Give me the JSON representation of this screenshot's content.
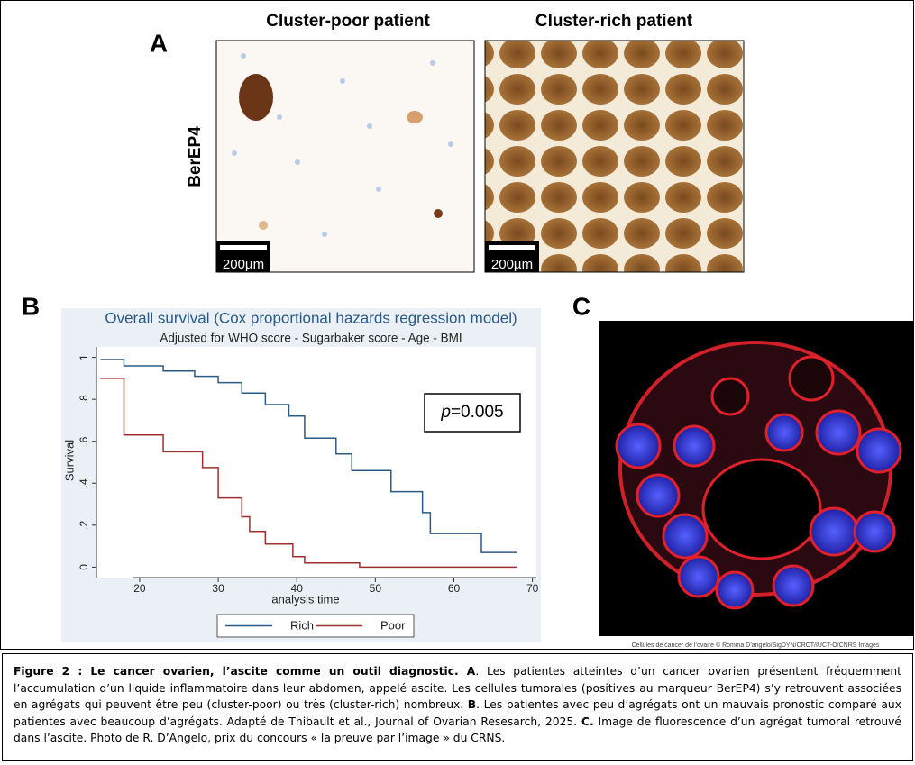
{
  "panel_a": {
    "label": "A",
    "titles": [
      "Cluster-poor patient",
      "Cluster-rich patient"
    ],
    "row_label": "BerEP4",
    "scale_bars": [
      "200µm",
      "200µm"
    ]
  },
  "panel_b": {
    "label": "B"
  },
  "panel_c": {
    "label": "C",
    "credit": "Cellules de cancer de l’ovaire © Romina D’angelo/SigDYN/CRCT/IUCT-O/CNRS Images"
  },
  "chart_data": {
    "type": "step",
    "title": "Overall survival (Cox proportional hazards regression model)",
    "subtitle": "Adjusted for WHO score - Sugarbaker score - Age - BMI",
    "x_label": "analysis time",
    "y_label": "Survival",
    "annotation": {
      "symbol": "p",
      "text": "=0.005"
    },
    "xlim": [
      14.5,
      70.5
    ],
    "xticks": [
      20,
      30,
      40,
      50,
      60,
      70
    ],
    "ylim": [
      -0.05,
      1.05
    ],
    "yticks": [
      0,
      {
        "value": 0.2,
        "label": ".2"
      },
      {
        "value": 0.4,
        "label": ".4"
      },
      {
        "value": 0.6,
        "label": ".6"
      },
      {
        "value": 0.8,
        "label": ".8"
      },
      1
    ],
    "legend": "bottom",
    "series": [
      {
        "name": "Rich",
        "color": "#2e5a86",
        "x": [
          15,
          18,
          23,
          27,
          30,
          33,
          36,
          39,
          41,
          45,
          47,
          52,
          56,
          57,
          63.5,
          68
        ],
        "values": [
          0.99,
          0.96,
          0.935,
          0.91,
          0.88,
          0.83,
          0.775,
          0.72,
          0.615,
          0.54,
          0.46,
          0.36,
          0.26,
          0.16,
          0.07,
          0.07
        ]
      },
      {
        "name": "Poor",
        "color": "#9e2f2f",
        "x": [
          15,
          18,
          23,
          28,
          30,
          33,
          34,
          36,
          39.5,
          41,
          48,
          68
        ],
        "values": [
          0.9,
          0.63,
          0.55,
          0.475,
          0.33,
          0.24,
          0.17,
          0.11,
          0.05,
          0.02,
          0,
          0
        ]
      }
    ]
  },
  "caption": [
    {
      "text": "Figure 2 : Le cancer ovarien, l’ascite comme un outil diagnostic.",
      "bold": true
    },
    {
      "text": " A",
      "bold": true
    },
    {
      "text": ". Les patientes atteintes d’un cancer ovarien présentent fréquemment l’accumulation d’un liquide inflammatoire dans leur abdomen, appelé ascite. Les cellules tumorales (positives au marqueur BerEP4) s’y retrouvent associées en agrégats qui peuvent être peu (cluster-poor) ou très (cluster-rich) nombreux. ",
      "bold": false
    },
    {
      "text": "B",
      "bold": true
    },
    {
      "text": ". Les patientes avec peu d’agrégats ont un mauvais pronostic comparé aux patientes avec beaucoup d’agrégats. Adapté de Thibault et al., Journal of Ovarian Resesarch, 2025. ",
      "bold": false
    },
    {
      "text": "C.",
      "bold": true
    },
    {
      "text": " Image de fluorescence d’un agrégat tumoral retrouvé dans l’ascite. Photo de R. D’Angelo, prix du concours « la preuve par l’image » du CRNS.",
      "bold": false
    }
  ]
}
